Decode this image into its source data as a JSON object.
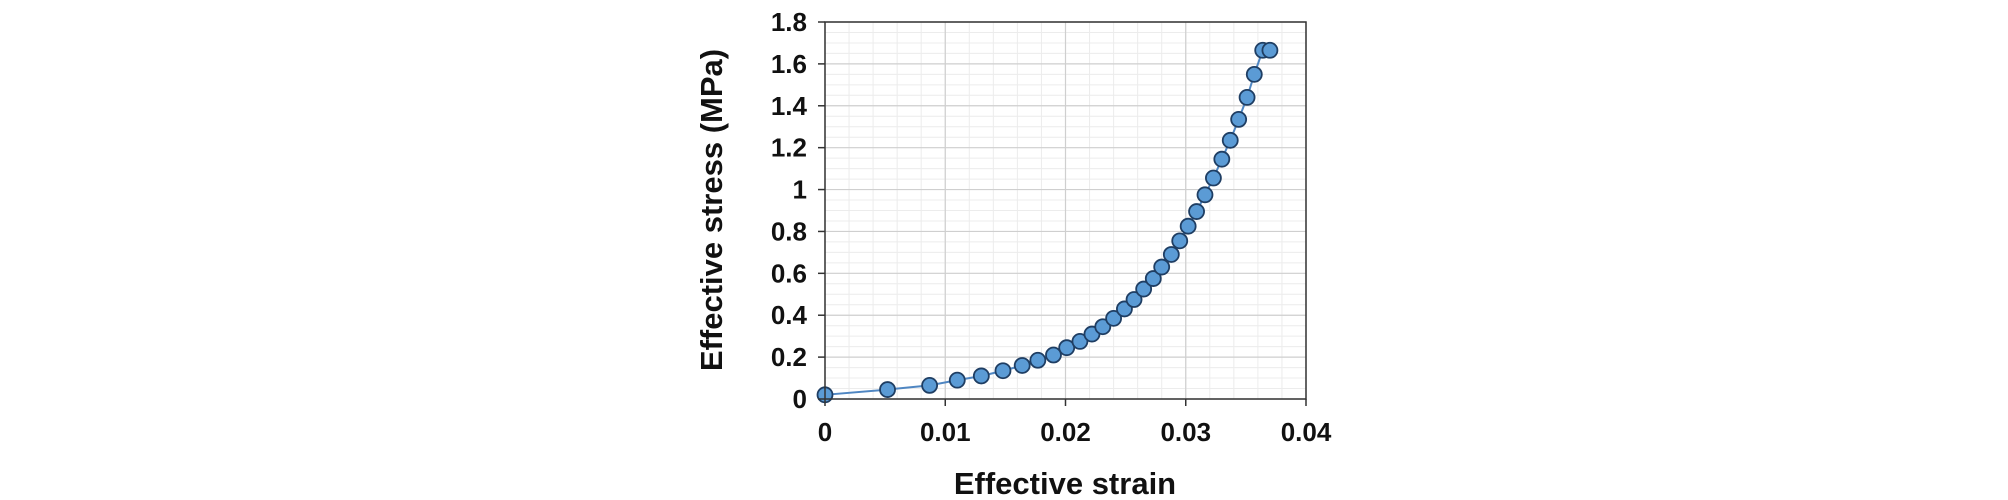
{
  "chart_data": {
    "type": "scatter",
    "xlabel": "Effective strain",
    "ylabel": "Effective stress (MPa)",
    "xlim": [
      0,
      0.04
    ],
    "ylim": [
      0,
      1.8
    ],
    "xticks": [
      0,
      0.01,
      0.02,
      0.03,
      0.04
    ],
    "xtick_labels": [
      "0",
      "0.01",
      "0.02",
      "0.03",
      "0.04"
    ],
    "yticks": [
      0,
      0.2,
      0.4,
      0.6,
      0.8,
      1.0,
      1.2,
      1.4,
      1.6,
      1.8
    ],
    "ytick_labels": [
      "0",
      "0.2",
      "0.4",
      "0.6",
      "0.8",
      "1",
      "1.2",
      "1.4",
      "1.6",
      "1.8"
    ],
    "major_grid": true,
    "minor_grid": true,
    "connect_points": true,
    "marker_color": "#5b9bd5",
    "marker_edge_color": "#1f3e63",
    "line_color": "#4f86c2",
    "series": [
      {
        "x": [
          0.0,
          0.0052,
          0.0087,
          0.011,
          0.013,
          0.0148,
          0.0164,
          0.0177,
          0.019,
          0.0201,
          0.0212,
          0.0222,
          0.0231,
          0.024,
          0.0249,
          0.0257,
          0.0265,
          0.0273,
          0.028,
          0.0288,
          0.0295,
          0.0302,
          0.0309,
          0.0316,
          0.0323,
          0.033,
          0.0337,
          0.0344,
          0.0351,
          0.0357,
          0.0364,
          0.037
        ],
        "y": [
          0.02,
          0.045,
          0.065,
          0.09,
          0.11,
          0.135,
          0.16,
          0.185,
          0.21,
          0.245,
          0.275,
          0.31,
          0.345,
          0.385,
          0.43,
          0.475,
          0.525,
          0.575,
          0.63,
          0.69,
          0.755,
          0.825,
          0.895,
          0.975,
          1.055,
          1.145,
          1.235,
          1.335,
          1.44,
          1.55,
          1.665,
          1.665
        ]
      }
    ]
  }
}
